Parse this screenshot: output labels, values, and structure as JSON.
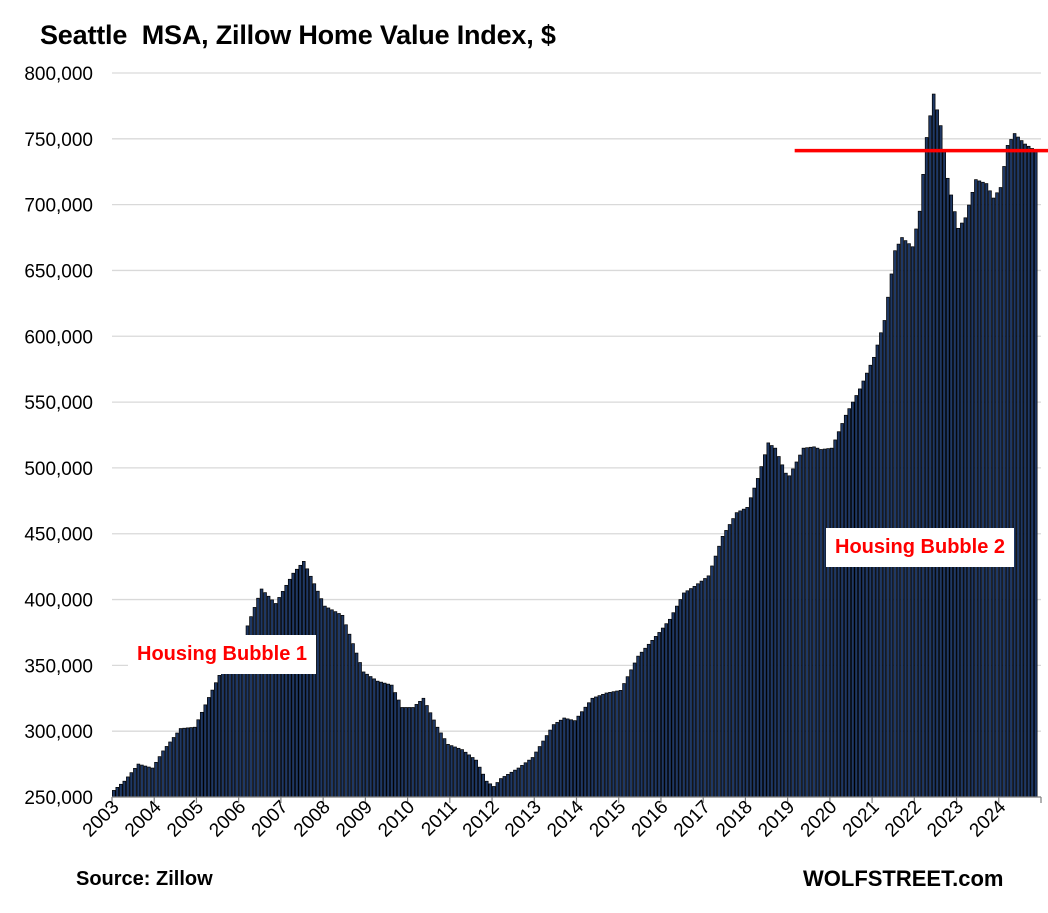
{
  "chart_data": {
    "type": "bar",
    "title": "Seattle  MSA, Zillow Home Value Index, $",
    "ylim": [
      250000,
      800000
    ],
    "y_ticks": [
      "250,000",
      "300,000",
      "350,000",
      "400,000",
      "450,000",
      "500,000",
      "550,000",
      "600,000",
      "650,000",
      "700,000",
      "750,000",
      "800,000"
    ],
    "x_ticks": [
      "2003",
      "2004",
      "2005",
      "2006",
      "2007",
      "2008",
      "2009",
      "2010",
      "2011",
      "2012",
      "2013",
      "2014",
      "2015",
      "2016",
      "2017",
      "2018",
      "2019",
      "2020",
      "2021",
      "2022",
      "2023",
      "2024"
    ],
    "grid": true,
    "x_start": "2003-01",
    "frequency": "monthly",
    "bar_color": "#1f3864",
    "bar_edge_color": "#000000",
    "anchors": [
      [
        "2003-01",
        255000
      ],
      [
        "2003-04",
        262000
      ],
      [
        "2003-08",
        275000
      ],
      [
        "2003-12",
        272000
      ],
      [
        "2004-03",
        285000
      ],
      [
        "2004-08",
        302000
      ],
      [
        "2004-12",
        303000
      ],
      [
        "2005-03",
        320000
      ],
      [
        "2005-08",
        348000
      ],
      [
        "2005-12",
        353000
      ],
      [
        "2006-03",
        380000
      ],
      [
        "2006-07",
        408000
      ],
      [
        "2006-11",
        397000
      ],
      [
        "2007-04",
        420000
      ],
      [
        "2007-07",
        429000
      ],
      [
        "2007-10",
        412000
      ],
      [
        "2008-01",
        395000
      ],
      [
        "2008-06",
        388000
      ],
      [
        "2008-12",
        345000
      ],
      [
        "2009-04",
        338000
      ],
      [
        "2009-08",
        335000
      ],
      [
        "2009-11",
        318000
      ],
      [
        "2010-02",
        318000
      ],
      [
        "2010-05",
        325000
      ],
      [
        "2010-09",
        303000
      ],
      [
        "2010-12",
        290000
      ],
      [
        "2011-04",
        286000
      ],
      [
        "2011-08",
        278000
      ],
      [
        "2011-11",
        262000
      ],
      [
        "2012-01",
        258000
      ],
      [
        "2012-03",
        264000
      ],
      [
        "2012-08",
        272000
      ],
      [
        "2012-12",
        280000
      ],
      [
        "2013-06",
        305000
      ],
      [
        "2013-09",
        310000
      ],
      [
        "2013-12",
        308000
      ],
      [
        "2014-05",
        325000
      ],
      [
        "2014-09",
        329000
      ],
      [
        "2015-01",
        331000
      ],
      [
        "2015-06",
        357000
      ],
      [
        "2015-12",
        375000
      ],
      [
        "2016-03",
        385000
      ],
      [
        "2016-07",
        405000
      ],
      [
        "2016-10",
        410000
      ],
      [
        "2017-02",
        418000
      ],
      [
        "2017-06",
        448000
      ],
      [
        "2017-10",
        466000
      ],
      [
        "2018-01",
        470000
      ],
      [
        "2018-04",
        492000
      ],
      [
        "2018-07",
        519000
      ],
      [
        "2018-09",
        515000
      ],
      [
        "2018-12",
        496000
      ],
      [
        "2019-01",
        494000
      ],
      [
        "2019-05",
        515000
      ],
      [
        "2019-08",
        516000
      ],
      [
        "2019-10",
        514000
      ],
      [
        "2020-01",
        515000
      ],
      [
        "2020-05",
        540000
      ],
      [
        "2020-09",
        560000
      ],
      [
        "2021-01",
        584000
      ],
      [
        "2021-04",
        612000
      ],
      [
        "2021-07",
        665000
      ],
      [
        "2021-09",
        675000
      ],
      [
        "2021-12",
        668000
      ],
      [
        "2022-02",
        695000
      ],
      [
        "2022-04",
        751000
      ],
      [
        "2022-06",
        784000
      ],
      [
        "2022-08",
        760000
      ],
      [
        "2022-10",
        720000
      ],
      [
        "2023-01",
        682000
      ],
      [
        "2023-03",
        690000
      ],
      [
        "2023-06",
        719000
      ],
      [
        "2023-09",
        716000
      ],
      [
        "2023-11",
        705000
      ],
      [
        "2024-01",
        713000
      ],
      [
        "2024-03",
        745000
      ],
      [
        "2024-05",
        754000
      ],
      [
        "2024-08",
        746000
      ],
      [
        "2024-11",
        741000
      ]
    ],
    "reference_line": {
      "value": 741000,
      "from": "2019-03",
      "color": "#ff0000"
    },
    "annotations": [
      {
        "text": "Housing Bubble 1",
        "color": "#ff0000"
      },
      {
        "text": "Housing Bubble 2",
        "color": "#ff0000"
      }
    ]
  },
  "source": "Source: Zillow",
  "brand": "WOLFSTREET.com"
}
